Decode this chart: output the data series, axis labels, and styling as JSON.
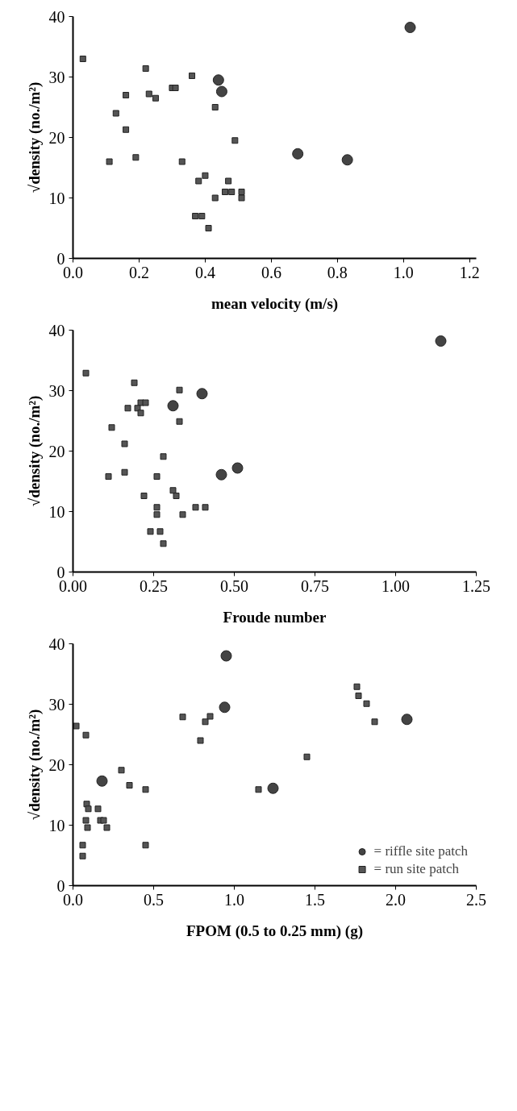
{
  "chart_data": [
    {
      "type": "scatter",
      "xlabel": "mean velocity (m/s)",
      "ylabel": "√density (no./m²)",
      "xlim": [
        0,
        1.22
      ],
      "ylim": [
        0,
        40
      ],
      "xticks": [
        {
          "value": 0,
          "label": "0.0"
        },
        {
          "value": 0.2,
          "label": "0.2"
        },
        {
          "value": 0.4,
          "label": "0.4"
        },
        {
          "value": 0.6,
          "label": "0.6"
        },
        {
          "value": 0.8,
          "label": "0.8"
        },
        {
          "value": 1.0,
          "label": "1.0"
        },
        {
          "value": 1.2,
          "label": "1.2"
        }
      ],
      "yticks": [
        0,
        10,
        20,
        30,
        40
      ],
      "grid": false,
      "series": [
        {
          "marker": "circle",
          "color": "#444444",
          "x": [
            0.44,
            0.45,
            0.68,
            0.83,
            1.02
          ],
          "values": [
            29.5,
            27.6,
            17.3,
            16.3,
            38.2
          ]
        },
        {
          "marker": "square",
          "color": "#555555",
          "x": [
            0.03,
            0.11,
            0.13,
            0.16,
            0.16,
            0.19,
            0.22,
            0.23,
            0.25,
            0.3,
            0.31,
            0.33,
            0.36,
            0.37,
            0.38,
            0.39,
            0.4,
            0.41,
            0.43,
            0.43,
            0.46,
            0.47,
            0.48,
            0.49,
            0.51,
            0.51
          ],
          "values": [
            33,
            16,
            24,
            27,
            21.3,
            16.7,
            31.4,
            27.2,
            26.5,
            28.2,
            28.2,
            16,
            30.2,
            7,
            12.8,
            7,
            13.7,
            5,
            10,
            25,
            11,
            12.8,
            11,
            19.5,
            10,
            11
          ]
        }
      ]
    },
    {
      "type": "scatter",
      "xlabel": "Froude number",
      "ylabel": "√density (no./m²)",
      "xlim": [
        0,
        1.25
      ],
      "ylim": [
        0,
        40
      ],
      "xticks": [
        {
          "value": 0,
          "label": "0.00"
        },
        {
          "value": 0.25,
          "label": "0.25"
        },
        {
          "value": 0.5,
          "label": "0.50"
        },
        {
          "value": 0.75,
          "label": "0.75"
        },
        {
          "value": 1.0,
          "label": "1.00"
        },
        {
          "value": 1.25,
          "label": "1.25"
        }
      ],
      "yticks": [
        0,
        10,
        20,
        30,
        40
      ],
      "grid": false,
      "series": [
        {
          "marker": "circle",
          "color": "#444444",
          "x": [
            0.4,
            0.31,
            0.46,
            0.51,
            1.14
          ],
          "values": [
            29.5,
            27.5,
            16.1,
            17.2,
            38.2
          ]
        },
        {
          "marker": "square",
          "color": "#555555",
          "x": [
            0.04,
            0.19,
            0.33,
            0.21,
            0.225,
            0.17,
            0.2,
            0.21,
            0.33,
            0.12,
            0.16,
            0.28,
            0.16,
            0.11,
            0.26,
            0.31,
            0.32,
            0.22,
            0.26,
            0.38,
            0.41,
            0.26,
            0.34,
            0.24,
            0.27,
            0.28
          ],
          "values": [
            32.9,
            31.3,
            30.1,
            28,
            28,
            27.1,
            27.1,
            26.3,
            24.9,
            23.9,
            21.2,
            19.1,
            16.5,
            15.8,
            15.8,
            13.5,
            12.6,
            12.6,
            10.7,
            10.7,
            10.7,
            9.5,
            9.5,
            6.7,
            6.7,
            4.7
          ]
        }
      ]
    },
    {
      "type": "scatter",
      "xlabel": "FPOM (0.5 to 0.25 mm) (g)",
      "ylabel": "√density (no./m²)",
      "xlim": [
        0,
        2.5
      ],
      "ylim": [
        0,
        40
      ],
      "xticks": [
        {
          "value": 0,
          "label": "0.0"
        },
        {
          "value": 0.5,
          "label": "0.5"
        },
        {
          "value": 1.0,
          "label": "1.0"
        },
        {
          "value": 1.5,
          "label": "1.5"
        },
        {
          "value": 2.0,
          "label": "2.0"
        },
        {
          "value": 2.5,
          "label": "2.5"
        }
      ],
      "yticks": [
        0,
        10,
        20,
        30,
        40
      ],
      "grid": false,
      "legend": "bottom right",
      "series": [
        {
          "name": "= riffle site patch",
          "marker": "circle",
          "color": "#444444",
          "x": [
            0.95,
            0.94,
            2.07,
            0.18,
            1.24
          ],
          "values": [
            38,
            29.5,
            27.5,
            17.3,
            16.1
          ]
        },
        {
          "name": "= run site patch",
          "marker": "square",
          "color": "#555555",
          "x": [
            0.02,
            0.08,
            0.68,
            0.85,
            0.82,
            0.79,
            1.76,
            1.77,
            1.82,
            1.87,
            1.45,
            0.3,
            0.35,
            0.45,
            1.15,
            0.085,
            0.095,
            0.155,
            0.08,
            0.17,
            0.19,
            0.09,
            0.21,
            0.06,
            0.06,
            0.45
          ],
          "values": [
            26.4,
            24.9,
            27.9,
            28,
            27.1,
            24,
            32.9,
            31.4,
            30.1,
            27.1,
            21.3,
            19.1,
            16.6,
            15.9,
            15.9,
            13.5,
            12.7,
            12.7,
            10.8,
            10.8,
            10.8,
            9.6,
            9.6,
            6.7,
            4.9,
            6.7
          ]
        }
      ]
    }
  ]
}
